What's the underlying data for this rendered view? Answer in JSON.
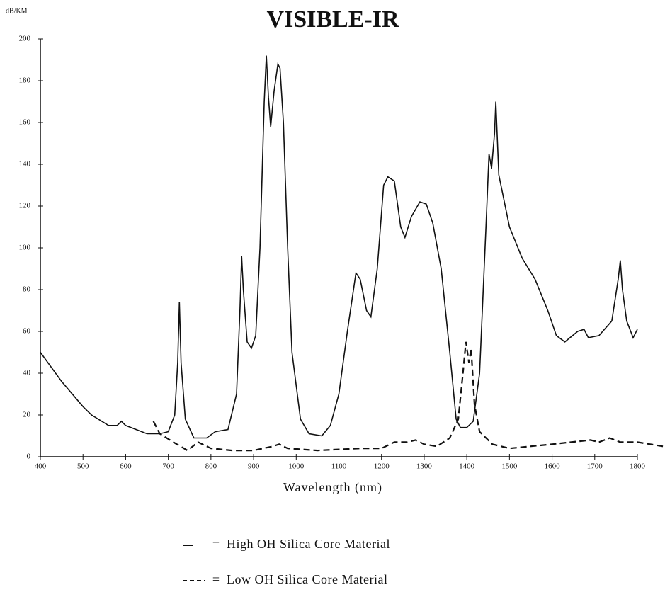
{
  "chart_data": {
    "type": "line",
    "title": "VISIBLE-IR",
    "y_label": "dB/KM",
    "x_label": "Wavelength (nm)",
    "legend_separator": "=",
    "xlim": [
      400,
      1800
    ],
    "ylim": [
      0,
      200
    ],
    "xticks": [
      400,
      500,
      600,
      700,
      800,
      900,
      1000,
      1100,
      1200,
      1300,
      1400,
      1500,
      1600,
      1700,
      1800
    ],
    "yticks": [
      0,
      20,
      40,
      60,
      80,
      100,
      120,
      140,
      160,
      180,
      200
    ],
    "series": [
      {
        "name": "High OH Silica Core Material",
        "color": "#111111",
        "dash": false,
        "x": [
          400,
          450,
          500,
          520,
          560,
          580,
          590,
          600,
          650,
          680,
          700,
          715,
          722,
          726,
          730,
          740,
          760,
          790,
          810,
          840,
          860,
          868,
          872,
          876,
          885,
          895,
          905,
          915,
          925,
          930,
          935,
          940,
          948,
          957,
          962,
          970,
          980,
          990,
          1010,
          1030,
          1060,
          1080,
          1100,
          1120,
          1140,
          1150,
          1165,
          1175,
          1190,
          1205,
          1215,
          1230,
          1245,
          1255,
          1270,
          1290,
          1305,
          1320,
          1340,
          1360,
          1375,
          1385,
          1400,
          1415,
          1430,
          1445,
          1452,
          1458,
          1465,
          1468,
          1475,
          1500,
          1530,
          1560,
          1590,
          1610,
          1630,
          1660,
          1675,
          1685,
          1710,
          1740,
          1755,
          1760,
          1765,
          1775,
          1790,
          1800
        ],
        "values": [
          50,
          36,
          24,
          20,
          15,
          15,
          17,
          15,
          11,
          11,
          12,
          20,
          45,
          74,
          45,
          18,
          9,
          9,
          12,
          13,
          30,
          70,
          96,
          80,
          55,
          52,
          58,
          100,
          170,
          192,
          172,
          158,
          175,
          188,
          186,
          160,
          100,
          50,
          18,
          11,
          10,
          15,
          30,
          60,
          88,
          85,
          70,
          67,
          90,
          130,
          134,
          132,
          110,
          105,
          115,
          122,
          121,
          112,
          90,
          50,
          18,
          14,
          14,
          17,
          40,
          110,
          145,
          138,
          155,
          170,
          135,
          110,
          95,
          85,
          70,
          58,
          55,
          60,
          61,
          57,
          58,
          65,
          85,
          94,
          80,
          65,
          57,
          61
        ]
      },
      {
        "name": "Low OH Silica Core Material",
        "color": "#111111",
        "dash": true,
        "x": [
          665,
          680,
          720,
          745,
          770,
          800,
          850,
          900,
          945,
          960,
          980,
          1050,
          1150,
          1200,
          1230,
          1260,
          1280,
          1300,
          1330,
          1360,
          1380,
          1390,
          1398,
          1405,
          1410,
          1418,
          1430,
          1460,
          1500,
          1600,
          1690,
          1710,
          1735,
          1760,
          1800,
          1830,
          1860
        ],
        "values": [
          17,
          11,
          6,
          3,
          7,
          4,
          3,
          3,
          5,
          6,
          4,
          3,
          4,
          4,
          7,
          7,
          8,
          6,
          5,
          9,
          18,
          38,
          55,
          45,
          52,
          25,
          12,
          6,
          4,
          6,
          8,
          7,
          9,
          7,
          7,
          6,
          5
        ]
      }
    ]
  }
}
